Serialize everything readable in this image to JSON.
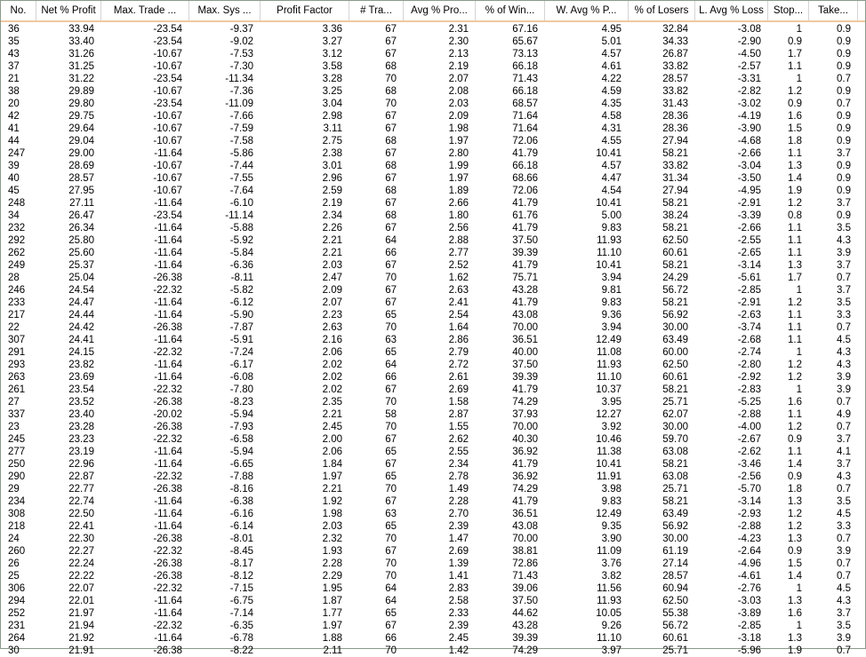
{
  "table": {
    "columns": [
      "No.",
      "Net % Profit",
      "Max. Trade ...",
      "Max. Sys ...",
      "Profit Factor",
      "# Tra...",
      "Avg % Pro...",
      "% of Win...",
      "W. Avg % P...",
      "% of Losers",
      "L. Avg % Loss",
      "Stop...",
      "Take..."
    ],
    "header_separator_color": "#f0c8a0",
    "rows": [
      [
        "36",
        "33.94",
        "-23.54",
        "-9.37",
        "3.36",
        "67",
        "2.31",
        "67.16",
        "4.95",
        "32.84",
        "-3.08",
        "1",
        "0.9"
      ],
      [
        "35",
        "33.40",
        "-23.54",
        "-9.02",
        "3.27",
        "67",
        "2.30",
        "65.67",
        "5.01",
        "34.33",
        "-2.90",
        "0.9",
        "0.9"
      ],
      [
        "43",
        "31.26",
        "-10.67",
        "-7.53",
        "3.12",
        "67",
        "2.13",
        "73.13",
        "4.57",
        "26.87",
        "-4.50",
        "1.7",
        "0.9"
      ],
      [
        "37",
        "31.25",
        "-10.67",
        "-7.30",
        "3.58",
        "68",
        "2.19",
        "66.18",
        "4.61",
        "33.82",
        "-2.57",
        "1.1",
        "0.9"
      ],
      [
        "21",
        "31.22",
        "-23.54",
        "-11.34",
        "3.28",
        "70",
        "2.07",
        "71.43",
        "4.22",
        "28.57",
        "-3.31",
        "1",
        "0.7"
      ],
      [
        "38",
        "29.89",
        "-10.67",
        "-7.36",
        "3.25",
        "68",
        "2.08",
        "66.18",
        "4.59",
        "33.82",
        "-2.82",
        "1.2",
        "0.9"
      ],
      [
        "20",
        "29.80",
        "-23.54",
        "-11.09",
        "3.04",
        "70",
        "2.03",
        "68.57",
        "4.35",
        "31.43",
        "-3.02",
        "0.9",
        "0.7"
      ],
      [
        "42",
        "29.75",
        "-10.67",
        "-7.66",
        "2.98",
        "67",
        "2.09",
        "71.64",
        "4.58",
        "28.36",
        "-4.19",
        "1.6",
        "0.9"
      ],
      [
        "41",
        "29.64",
        "-10.67",
        "-7.59",
        "3.11",
        "67",
        "1.98",
        "71.64",
        "4.31",
        "28.36",
        "-3.90",
        "1.5",
        "0.9"
      ],
      [
        "44",
        "29.04",
        "-10.67",
        "-7.58",
        "2.75",
        "68",
        "1.97",
        "72.06",
        "4.55",
        "27.94",
        "-4.68",
        "1.8",
        "0.9"
      ],
      [
        "247",
        "29.00",
        "-11.64",
        "-5.86",
        "2.38",
        "67",
        "2.80",
        "41.79",
        "10.41",
        "58.21",
        "-2.66",
        "1.1",
        "3.7"
      ],
      [
        "39",
        "28.69",
        "-10.67",
        "-7.44",
        "3.01",
        "68",
        "1.99",
        "66.18",
        "4.57",
        "33.82",
        "-3.04",
        "1.3",
        "0.9"
      ],
      [
        "40",
        "28.57",
        "-10.67",
        "-7.55",
        "2.96",
        "67",
        "1.97",
        "68.66",
        "4.47",
        "31.34",
        "-3.50",
        "1.4",
        "0.9"
      ],
      [
        "45",
        "27.95",
        "-10.67",
        "-7.64",
        "2.59",
        "68",
        "1.89",
        "72.06",
        "4.54",
        "27.94",
        "-4.95",
        "1.9",
        "0.9"
      ],
      [
        "248",
        "27.11",
        "-11.64",
        "-6.10",
        "2.19",
        "67",
        "2.66",
        "41.79",
        "10.41",
        "58.21",
        "-2.91",
        "1.2",
        "3.7"
      ],
      [
        "34",
        "26.47",
        "-23.54",
        "-11.14",
        "2.34",
        "68",
        "1.80",
        "61.76",
        "5.00",
        "38.24",
        "-3.39",
        "0.8",
        "0.9"
      ],
      [
        "232",
        "26.34",
        "-11.64",
        "-5.88",
        "2.26",
        "67",
        "2.56",
        "41.79",
        "9.83",
        "58.21",
        "-2.66",
        "1.1",
        "3.5"
      ],
      [
        "292",
        "25.80",
        "-11.64",
        "-5.92",
        "2.21",
        "64",
        "2.88",
        "37.50",
        "11.93",
        "62.50",
        "-2.55",
        "1.1",
        "4.3"
      ],
      [
        "262",
        "25.60",
        "-11.64",
        "-5.84",
        "2.21",
        "66",
        "2.77",
        "39.39",
        "11.10",
        "60.61",
        "-2.65",
        "1.1",
        "3.9"
      ],
      [
        "249",
        "25.37",
        "-11.64",
        "-6.36",
        "2.03",
        "67",
        "2.52",
        "41.79",
        "10.41",
        "58.21",
        "-3.14",
        "1.3",
        "3.7"
      ],
      [
        "28",
        "25.04",
        "-26.38",
        "-8.11",
        "2.47",
        "70",
        "1.62",
        "75.71",
        "3.94",
        "24.29",
        "-5.61",
        "1.7",
        "0.7"
      ],
      [
        "246",
        "24.54",
        "-22.32",
        "-5.82",
        "2.09",
        "67",
        "2.63",
        "43.28",
        "9.81",
        "56.72",
        "-2.85",
        "1",
        "3.7"
      ],
      [
        "233",
        "24.47",
        "-11.64",
        "-6.12",
        "2.07",
        "67",
        "2.41",
        "41.79",
        "9.83",
        "58.21",
        "-2.91",
        "1.2",
        "3.5"
      ],
      [
        "217",
        "24.44",
        "-11.64",
        "-5.90",
        "2.23",
        "65",
        "2.54",
        "43.08",
        "9.36",
        "56.92",
        "-2.63",
        "1.1",
        "3.3"
      ],
      [
        "22",
        "24.42",
        "-26.38",
        "-7.87",
        "2.63",
        "70",
        "1.64",
        "70.00",
        "3.94",
        "30.00",
        "-3.74",
        "1.1",
        "0.7"
      ],
      [
        "307",
        "24.41",
        "-11.64",
        "-5.91",
        "2.16",
        "63",
        "2.86",
        "36.51",
        "12.49",
        "63.49",
        "-2.68",
        "1.1",
        "4.5"
      ],
      [
        "291",
        "24.15",
        "-22.32",
        "-7.24",
        "2.06",
        "65",
        "2.79",
        "40.00",
        "11.08",
        "60.00",
        "-2.74",
        "1",
        "4.3"
      ],
      [
        "293",
        "23.82",
        "-11.64",
        "-6.17",
        "2.02",
        "64",
        "2.72",
        "37.50",
        "11.93",
        "62.50",
        "-2.80",
        "1.2",
        "4.3"
      ],
      [
        "263",
        "23.69",
        "-11.64",
        "-6.08",
        "2.02",
        "66",
        "2.61",
        "39.39",
        "11.10",
        "60.61",
        "-2.92",
        "1.2",
        "3.9"
      ],
      [
        "261",
        "23.54",
        "-22.32",
        "-7.80",
        "2.02",
        "67",
        "2.69",
        "41.79",
        "10.37",
        "58.21",
        "-2.83",
        "1",
        "3.9"
      ],
      [
        "27",
        "23.52",
        "-26.38",
        "-8.23",
        "2.35",
        "70",
        "1.58",
        "74.29",
        "3.95",
        "25.71",
        "-5.25",
        "1.6",
        "0.7"
      ],
      [
        "337",
        "23.40",
        "-20.02",
        "-5.94",
        "2.21",
        "58",
        "2.87",
        "37.93",
        "12.27",
        "62.07",
        "-2.88",
        "1.1",
        "4.9"
      ],
      [
        "23",
        "23.28",
        "-26.38",
        "-7.93",
        "2.45",
        "70",
        "1.55",
        "70.00",
        "3.92",
        "30.00",
        "-4.00",
        "1.2",
        "0.7"
      ],
      [
        "245",
        "23.23",
        "-22.32",
        "-6.58",
        "2.00",
        "67",
        "2.62",
        "40.30",
        "10.46",
        "59.70",
        "-2.67",
        "0.9",
        "3.7"
      ],
      [
        "277",
        "23.19",
        "-11.64",
        "-5.94",
        "2.06",
        "65",
        "2.55",
        "36.92",
        "11.38",
        "63.08",
        "-2.62",
        "1.1",
        "4.1"
      ],
      [
        "250",
        "22.96",
        "-11.64",
        "-6.65",
        "1.84",
        "67",
        "2.34",
        "41.79",
        "10.41",
        "58.21",
        "-3.46",
        "1.4",
        "3.7"
      ],
      [
        "290",
        "22.87",
        "-22.32",
        "-7.88",
        "1.97",
        "65",
        "2.78",
        "36.92",
        "11.91",
        "63.08",
        "-2.56",
        "0.9",
        "4.3"
      ],
      [
        "29",
        "22.77",
        "-26.38",
        "-8.16",
        "2.21",
        "70",
        "1.49",
        "74.29",
        "3.98",
        "25.71",
        "-5.70",
        "1.8",
        "0.7"
      ],
      [
        "234",
        "22.74",
        "-11.64",
        "-6.38",
        "1.92",
        "67",
        "2.28",
        "41.79",
        "9.83",
        "58.21",
        "-3.14",
        "1.3",
        "3.5"
      ],
      [
        "308",
        "22.50",
        "-11.64",
        "-6.16",
        "1.98",
        "63",
        "2.70",
        "36.51",
        "12.49",
        "63.49",
        "-2.93",
        "1.2",
        "4.5"
      ],
      [
        "218",
        "22.41",
        "-11.64",
        "-6.14",
        "2.03",
        "65",
        "2.39",
        "43.08",
        "9.35",
        "56.92",
        "-2.88",
        "1.2",
        "3.3"
      ],
      [
        "24",
        "22.30",
        "-26.38",
        "-8.01",
        "2.32",
        "70",
        "1.47",
        "70.00",
        "3.90",
        "30.00",
        "-4.23",
        "1.3",
        "0.7"
      ],
      [
        "260",
        "22.27",
        "-22.32",
        "-8.45",
        "1.93",
        "67",
        "2.69",
        "38.81",
        "11.09",
        "61.19",
        "-2.64",
        "0.9",
        "3.9"
      ],
      [
        "26",
        "22.24",
        "-26.38",
        "-8.17",
        "2.28",
        "70",
        "1.39",
        "72.86",
        "3.76",
        "27.14",
        "-4.96",
        "1.5",
        "0.7"
      ],
      [
        "25",
        "22.22",
        "-26.38",
        "-8.12",
        "2.29",
        "70",
        "1.41",
        "71.43",
        "3.82",
        "28.57",
        "-4.61",
        "1.4",
        "0.7"
      ],
      [
        "306",
        "22.07",
        "-22.32",
        "-7.15",
        "1.95",
        "64",
        "2.83",
        "39.06",
        "11.56",
        "60.94",
        "-2.76",
        "1",
        "4.5"
      ],
      [
        "294",
        "22.01",
        "-11.64",
        "-6.75",
        "1.87",
        "64",
        "2.58",
        "37.50",
        "11.93",
        "62.50",
        "-3.03",
        "1.3",
        "4.3"
      ],
      [
        "252",
        "21.97",
        "-11.64",
        "-7.14",
        "1.77",
        "65",
        "2.33",
        "44.62",
        "10.05",
        "55.38",
        "-3.89",
        "1.6",
        "3.7"
      ],
      [
        "231",
        "21.94",
        "-22.32",
        "-6.35",
        "1.97",
        "67",
        "2.39",
        "43.28",
        "9.26",
        "56.72",
        "-2.85",
        "1",
        "3.5"
      ],
      [
        "264",
        "21.92",
        "-11.64",
        "-6.78",
        "1.88",
        "66",
        "2.45",
        "39.39",
        "11.10",
        "60.61",
        "-3.18",
        "1.3",
        "3.9"
      ],
      [
        "30",
        "21.91",
        "-26.38",
        "-8.22",
        "2.11",
        "70",
        "1.42",
        "74.29",
        "3.97",
        "25.71",
        "-5.96",
        "1.9",
        "0.7"
      ]
    ]
  }
}
